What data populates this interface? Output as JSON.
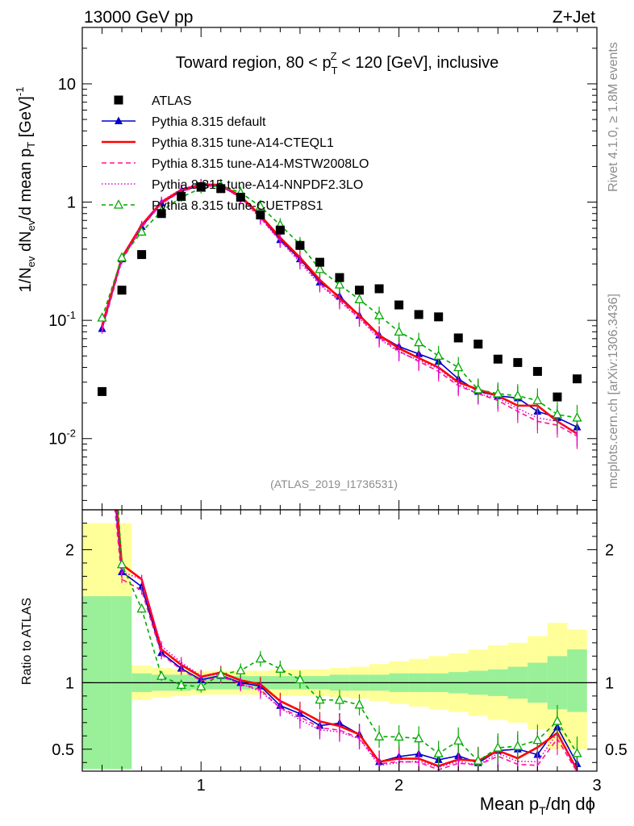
{
  "header": {
    "left": "13000 GeV pp",
    "right": "Z+Jet"
  },
  "side_labels": {
    "rivet": "Rivet 4.1.0, ≥ 1.8M events",
    "mcplots": "mcplots.cern.ch [arXiv:1306.3436]"
  },
  "watermark": "(ATLAS_2019_I1736531)",
  "chart_data": {
    "type": "scatter",
    "title": {
      "prefix": "Toward region, 80 < p",
      "sub": "T",
      "sup": "Z",
      "suffix": " < 120 [GeV], inclusive"
    },
    "xlabel": {
      "main": "Mean p",
      "sub": "T",
      "rest": "/dη dϕ"
    },
    "ylabel": {
      "a": "1/N",
      "a_sub": "ev",
      "b": " dN",
      "b_sub": "ev",
      "c": "/d mean p",
      "c_sub": "T",
      "d": " [GeV]",
      "d_sup": "-1"
    },
    "ratio_ylabel": "Ratio to ATLAS",
    "xlim": [
      0.4,
      3.0
    ],
    "ylim": [
      0.0025,
      30
    ],
    "ratio_ylim": [
      0.335,
      2.3
    ],
    "x_ticks": [
      {
        "v": 1,
        "label": "1"
      },
      {
        "v": 2,
        "label": "2"
      },
      {
        "v": 3,
        "label": "3"
      }
    ],
    "y_ticks": [
      {
        "v": 0.01,
        "base": "10",
        "exp": "-2"
      },
      {
        "v": 0.1,
        "base": "10",
        "exp": "-1"
      },
      {
        "v": 1,
        "base": "1",
        "exp": ""
      },
      {
        "v": 10,
        "base": "10",
        "exp": ""
      }
    ],
    "ratio_ticks": [
      {
        "v": 0.5,
        "label": "0.5"
      },
      {
        "v": 1,
        "label": "1"
      },
      {
        "v": 2,
        "label": "2"
      }
    ],
    "x": [
      0.5,
      0.6,
      0.7,
      0.8,
      0.9,
      1.0,
      1.1,
      1.2,
      1.3,
      1.4,
      1.5,
      1.6,
      1.7,
      1.8,
      1.9,
      2.0,
      2.1,
      2.2,
      2.3,
      2.4,
      2.5,
      2.6,
      2.7,
      2.8,
      2.9
    ],
    "bin_edges": [
      0.4,
      0.55,
      0.65,
      0.75,
      0.85,
      0.95,
      1.05,
      1.15,
      1.25,
      1.35,
      1.45,
      1.55,
      1.65,
      1.75,
      1.85,
      1.95,
      2.05,
      2.15,
      2.25,
      2.35,
      2.45,
      2.55,
      2.65,
      2.75,
      2.85,
      2.95
    ],
    "data": {
      "name": "ATLAS",
      "values": [
        0.025,
        0.18,
        0.36,
        0.8,
        1.12,
        1.35,
        1.3,
        1.1,
        0.78,
        0.58,
        0.43,
        0.31,
        0.23,
        0.18,
        0.185,
        0.135,
        0.112,
        0.107,
        0.071,
        0.063,
        0.047,
        0.044,
        0.037,
        0.0225,
        0.032
      ],
      "band_inner": [
        [
          0.35,
          1.65
        ],
        [
          0.35,
          1.65
        ],
        [
          0.93,
          1.07
        ],
        [
          0.94,
          1.06
        ],
        [
          0.94,
          1.06
        ],
        [
          0.95,
          1.05
        ],
        [
          0.95,
          1.05
        ],
        [
          0.95,
          1.05
        ],
        [
          0.95,
          1.05
        ],
        [
          0.95,
          1.05
        ],
        [
          0.95,
          1.05
        ],
        [
          0.95,
          1.05
        ],
        [
          0.94,
          1.06
        ],
        [
          0.94,
          1.06
        ],
        [
          0.94,
          1.06
        ],
        [
          0.93,
          1.07
        ],
        [
          0.93,
          1.07
        ],
        [
          0.93,
          1.07
        ],
        [
          0.92,
          1.08
        ],
        [
          0.91,
          1.09
        ],
        [
          0.9,
          1.1
        ],
        [
          0.88,
          1.12
        ],
        [
          0.85,
          1.15
        ],
        [
          0.8,
          1.2
        ],
        [
          0.78,
          1.25
        ]
      ],
      "band_outer": [
        [
          0.35,
          2.2
        ],
        [
          0.85,
          2.2
        ],
        [
          0.87,
          1.13
        ],
        [
          0.89,
          1.11
        ],
        [
          0.9,
          1.1
        ],
        [
          0.91,
          1.09
        ],
        [
          0.91,
          1.09
        ],
        [
          0.91,
          1.09
        ],
        [
          0.91,
          1.09
        ],
        [
          0.9,
          1.1
        ],
        [
          0.9,
          1.1
        ],
        [
          0.9,
          1.1
        ],
        [
          0.89,
          1.11
        ],
        [
          0.88,
          1.12
        ],
        [
          0.86,
          1.14
        ],
        [
          0.84,
          1.16
        ],
        [
          0.82,
          1.18
        ],
        [
          0.8,
          1.2
        ],
        [
          0.78,
          1.22
        ],
        [
          0.75,
          1.25
        ],
        [
          0.72,
          1.28
        ],
        [
          0.7,
          1.3
        ],
        [
          0.65,
          1.35
        ],
        [
          0.5,
          1.45
        ],
        [
          0.5,
          1.4
        ]
      ]
    },
    "series": [
      {
        "name": "Pythia 8.315 default",
        "color": "#0000cc",
        "dash": "",
        "marker": "triangle-filled",
        "values": [
          0.085,
          0.33,
          0.62,
          0.98,
          1.24,
          1.38,
          1.37,
          1.1,
          0.76,
          0.48,
          0.33,
          0.21,
          0.16,
          0.11,
          0.075,
          0.06,
          0.052,
          0.045,
          0.032,
          0.025,
          0.023,
          0.022,
          0.017,
          0.015,
          0.0125
        ]
      },
      {
        "name": "Pythia 8.315 tune-A14-CTEQL1",
        "color": "#ff0000",
        "dash": "",
        "marker": "",
        "values": [
          0.09,
          0.34,
          0.64,
          1.0,
          1.27,
          1.41,
          1.4,
          1.12,
          0.77,
          0.5,
          0.34,
          0.22,
          0.155,
          0.11,
          0.075,
          0.058,
          0.048,
          0.04,
          0.03,
          0.026,
          0.023,
          0.019,
          0.019,
          0.014,
          0.011
        ]
      },
      {
        "name": "Pythia 8.315 tune-A14-MSTW2008LO",
        "color": "#ff1493",
        "dash": "6,4",
        "marker": "",
        "values": [
          0.082,
          0.32,
          0.61,
          0.97,
          1.23,
          1.37,
          1.36,
          1.09,
          0.74,
          0.47,
          0.32,
          0.205,
          0.148,
          0.105,
          0.072,
          0.055,
          0.045,
          0.037,
          0.028,
          0.024,
          0.021,
          0.017,
          0.014,
          0.013,
          0.0105
        ]
      },
      {
        "name": "Pythia 8.315 tune-A14-NNPDF2.3LO",
        "color": "#dd00dd",
        "dash": "1.5,2.5",
        "marker": "",
        "values": [
          0.088,
          0.33,
          0.64,
          1.02,
          1.29,
          1.42,
          1.38,
          1.09,
          0.73,
          0.47,
          0.31,
          0.2,
          0.145,
          0.104,
          0.07,
          0.054,
          0.046,
          0.039,
          0.029,
          0.024,
          0.022,
          0.018,
          0.015,
          0.014,
          0.011
        ]
      },
      {
        "name": "Pythia 8.315 tune-CUETP8S1",
        "color": "#00aa00",
        "dash": "5,4",
        "marker": "triangle-open",
        "values": [
          0.105,
          0.34,
          0.56,
          0.84,
          1.1,
          1.31,
          1.38,
          1.2,
          0.92,
          0.64,
          0.44,
          0.27,
          0.2,
          0.15,
          0.11,
          0.08,
          0.065,
          0.05,
          0.04,
          0.026,
          0.024,
          0.023,
          0.021,
          0.016,
          0.015
        ]
      }
    ]
  }
}
